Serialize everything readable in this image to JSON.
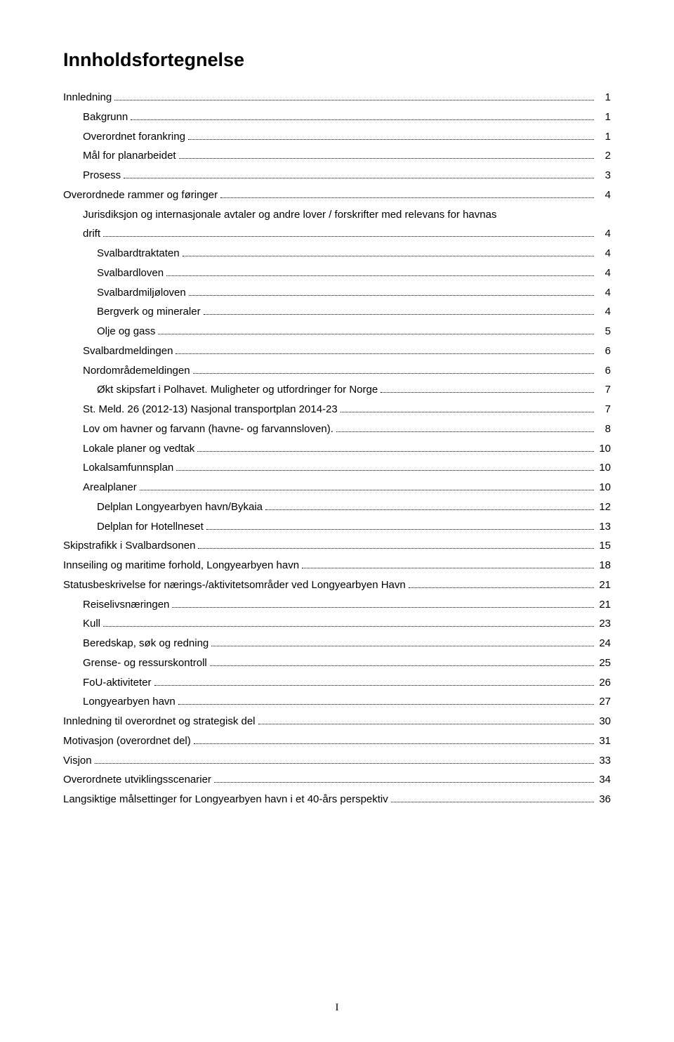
{
  "title": "Innholdsfortegnelse",
  "footer_page": "I",
  "colors": {
    "background": "#ffffff",
    "text": "#000000",
    "dots": "#000000"
  },
  "typography": {
    "title_fontsize_pt": 20,
    "body_fontsize_pt": 11,
    "font_family": "Arial"
  },
  "entries": [
    {
      "label": "Innledning",
      "page": "1",
      "indent": 0
    },
    {
      "label": "Bakgrunn",
      "page": "1",
      "indent": 1
    },
    {
      "label": "Overordnet forankring",
      "page": "1",
      "indent": 1
    },
    {
      "label": "Mål for planarbeidet",
      "page": "2",
      "indent": 1
    },
    {
      "label": "Prosess",
      "page": "3",
      "indent": 1
    },
    {
      "label": "Overordnede rammer og føringer",
      "page": "4",
      "indent": 0
    },
    {
      "label": "Jurisdiksjon og internasjonale avtaler og andre lover / forskrifter med relevans for havnas drift",
      "page": "4",
      "indent": 1
    },
    {
      "label": "Svalbardtraktaten",
      "page": "4",
      "indent": 2
    },
    {
      "label": "Svalbardloven",
      "page": "4",
      "indent": 2
    },
    {
      "label": "Svalbardmiljøloven",
      "page": "4",
      "indent": 2
    },
    {
      "label": "Bergverk og mineraler",
      "page": "4",
      "indent": 2
    },
    {
      "label": "Olje og gass",
      "page": "5",
      "indent": 2
    },
    {
      "label": "Svalbardmeldingen",
      "page": "6",
      "indent": 1
    },
    {
      "label": "Nordområdemeldingen",
      "page": "6",
      "indent": 1
    },
    {
      "label": "Økt skipsfart i Polhavet. Muligheter og utfordringer for Norge",
      "page": "7",
      "indent": 2
    },
    {
      "label": "St. Meld. 26 (2012-13) Nasjonal transportplan 2014-23",
      "page": "7",
      "indent": 1
    },
    {
      "label": "Lov om havner og farvann (havne- og farvannsloven).",
      "page": "8",
      "indent": 1
    },
    {
      "label": "Lokale planer og vedtak",
      "page": "10",
      "indent": 1
    },
    {
      "label": "Lokalsamfunnsplan",
      "page": "10",
      "indent": 1
    },
    {
      "label": "Arealplaner",
      "page": "10",
      "indent": 1
    },
    {
      "label": "Delplan Longyearbyen havn/Bykaia",
      "page": "12",
      "indent": 2
    },
    {
      "label": "Delplan for Hotellneset",
      "page": "13",
      "indent": 2
    },
    {
      "label": "Skipstrafikk i Svalbardsonen",
      "page": "15",
      "indent": 0
    },
    {
      "label": "Innseiling og maritime forhold, Longyearbyen havn",
      "page": "18",
      "indent": 0
    },
    {
      "label": "Statusbeskrivelse for nærings-/aktivitetsområder ved Longyearbyen Havn",
      "page": "21",
      "indent": 0
    },
    {
      "label": "Reiselivsnæringen",
      "page": "21",
      "indent": 1
    },
    {
      "label": "Kull",
      "page": "23",
      "indent": 1
    },
    {
      "label": "Beredskap, søk og redning",
      "page": "24",
      "indent": 1
    },
    {
      "label": "Grense- og ressurskontroll",
      "page": "25",
      "indent": 1
    },
    {
      "label": "FoU-aktiviteter",
      "page": "26",
      "indent": 1
    },
    {
      "label": "Longyearbyen havn",
      "page": "27",
      "indent": 1
    },
    {
      "label": "Innledning til overordnet og strategisk del",
      "page": "30",
      "indent": 0
    },
    {
      "label": "Motivasjon (overordnet del)",
      "page": "31",
      "indent": 0
    },
    {
      "label": "Visjon",
      "page": "33",
      "indent": 0
    },
    {
      "label": "Overordnete utviklingsscenarier",
      "page": "34",
      "indent": 0
    },
    {
      "label": "Langsiktige målsettinger for Longyearbyen havn i et 40-års perspektiv",
      "page": "36",
      "indent": 0
    }
  ]
}
